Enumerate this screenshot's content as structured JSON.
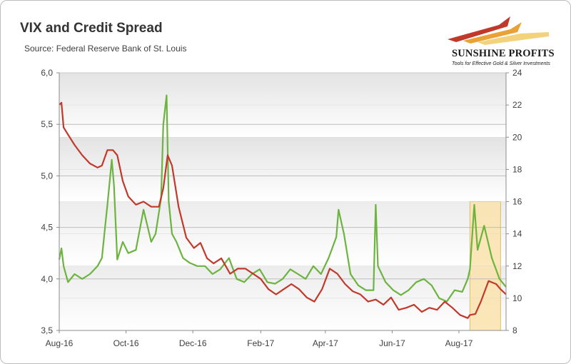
{
  "header": {
    "title": "VIX and Credit Spread",
    "subtitle": "Source: Federal Reserve Bank of St. Louis"
  },
  "logo": {
    "name": "SUNSHINE PROFITS",
    "tagline": "Tools for Effective Gold & Silver Investments"
  },
  "colors": {
    "vix": "#6db33f",
    "spread": "#c0392b",
    "highlight": "#fbe3ad",
    "band_dark": "#e3e3e3",
    "band_light": "#ffffff"
  },
  "chart_data": {
    "type": "line",
    "title": "VIX and Credit Spread",
    "subtitle": "Source: Federal Reserve Bank of St. Louis",
    "x_ticks": [
      "Aug-16",
      "Oct-16",
      "Dec-16",
      "Feb-17",
      "Apr-17",
      "Jun-17",
      "Aug-17"
    ],
    "y_left": {
      "ticks": [
        "3,5",
        "4,0",
        "4,5",
        "5,0",
        "5,5",
        "6,0"
      ],
      "ylim": [
        3.5,
        6.0
      ]
    },
    "y_right": {
      "ticks": [
        "8",
        "10",
        "12",
        "14",
        "16",
        "18",
        "20",
        "22",
        "24"
      ],
      "ylim": [
        8,
        24
      ]
    },
    "grid": true,
    "highlight": {
      "x_start": "2017-08-11",
      "x_end": "2017-09-08"
    },
    "series": [
      {
        "axis": "left",
        "x": [
          "2016-08-01",
          "2016-08-03",
          "2016-08-05",
          "2016-08-09",
          "2016-08-15",
          "2016-08-22",
          "2016-08-29",
          "2016-09-05",
          "2016-09-09",
          "2016-09-14",
          "2016-09-19",
          "2016-09-23",
          "2016-09-28",
          "2016-10-03",
          "2016-10-10",
          "2016-10-17",
          "2016-10-24",
          "2016-10-31",
          "2016-11-04",
          "2016-11-08",
          "2016-11-12",
          "2016-11-18",
          "2016-11-25",
          "2016-12-02",
          "2016-12-08",
          "2016-12-14",
          "2016-12-20",
          "2016-12-27",
          "2017-01-04",
          "2017-01-11",
          "2017-01-18",
          "2017-01-25",
          "2017-02-01",
          "2017-02-08",
          "2017-02-15",
          "2017-02-22",
          "2017-03-01",
          "2017-03-08",
          "2017-03-15",
          "2017-03-22",
          "2017-03-29",
          "2017-04-05",
          "2017-04-12",
          "2017-04-19",
          "2017-04-26",
          "2017-05-03",
          "2017-05-10",
          "2017-05-17",
          "2017-05-24",
          "2017-05-31",
          "2017-06-07",
          "2017-06-14",
          "2017-06-21",
          "2017-06-28",
          "2017-07-05",
          "2017-07-12",
          "2017-07-19",
          "2017-07-26",
          "2017-08-02",
          "2017-08-09",
          "2017-08-11",
          "2017-08-16",
          "2017-08-21",
          "2017-08-28",
          "2017-09-04",
          "2017-09-08",
          "2017-09-13"
        ],
        "values": [
          5.69,
          5.71,
          5.47,
          5.4,
          5.3,
          5.2,
          5.12,
          5.08,
          5.1,
          5.25,
          5.25,
          5.2,
          4.95,
          4.8,
          4.72,
          4.75,
          4.7,
          4.7,
          4.88,
          5.2,
          5.1,
          4.7,
          4.4,
          4.3,
          4.35,
          4.2,
          4.15,
          4.2,
          4.05,
          4.1,
          4.1,
          4.05,
          4.0,
          3.9,
          3.85,
          3.9,
          3.95,
          3.9,
          3.82,
          3.78,
          3.9,
          4.1,
          4.05,
          3.95,
          3.88,
          3.85,
          3.78,
          3.8,
          3.75,
          3.82,
          3.7,
          3.72,
          3.75,
          3.68,
          3.72,
          3.7,
          3.78,
          3.72,
          3.65,
          3.62,
          3.65,
          3.66,
          3.78,
          3.98,
          3.95,
          3.9,
          3.85
        ]
      },
      {
        "axis": "right",
        "x": [
          "2016-08-01",
          "2016-08-03",
          "2016-08-05",
          "2016-08-09",
          "2016-08-15",
          "2016-08-22",
          "2016-08-29",
          "2016-09-05",
          "2016-09-09",
          "2016-09-12",
          "2016-09-14",
          "2016-09-18",
          "2016-09-20",
          "2016-09-23",
          "2016-09-28",
          "2016-10-03",
          "2016-10-10",
          "2016-10-17",
          "2016-10-24",
          "2016-10-28",
          "2016-11-02",
          "2016-11-04",
          "2016-11-07",
          "2016-11-09",
          "2016-11-12",
          "2016-11-16",
          "2016-11-22",
          "2016-11-28",
          "2016-12-05",
          "2016-12-12",
          "2016-12-19",
          "2016-12-26",
          "2017-01-03",
          "2017-01-10",
          "2017-01-17",
          "2017-01-24",
          "2017-01-31",
          "2017-02-07",
          "2017-02-14",
          "2017-02-21",
          "2017-02-28",
          "2017-03-07",
          "2017-03-14",
          "2017-03-21",
          "2017-03-28",
          "2017-04-04",
          "2017-04-11",
          "2017-04-13",
          "2017-04-18",
          "2017-04-24",
          "2017-05-01",
          "2017-05-08",
          "2017-05-15",
          "2017-05-17",
          "2017-05-19",
          "2017-05-26",
          "2017-06-02",
          "2017-06-09",
          "2017-06-16",
          "2017-06-23",
          "2017-06-30",
          "2017-07-07",
          "2017-07-14",
          "2017-07-21",
          "2017-07-28",
          "2017-08-04",
          "2017-08-09",
          "2017-08-11",
          "2017-08-15",
          "2017-08-18",
          "2017-08-24",
          "2017-08-31",
          "2017-09-07",
          "2017-09-13"
        ],
        "values": [
          12.4,
          13.1,
          12.0,
          11.0,
          11.5,
          11.2,
          11.5,
          12.0,
          12.5,
          14.5,
          15.8,
          18.6,
          17.0,
          12.4,
          13.5,
          12.8,
          13.0,
          15.5,
          13.5,
          14.0,
          16.2,
          20.8,
          22.6,
          16.0,
          14.0,
          13.5,
          12.5,
          12.2,
          12.0,
          12.0,
          11.5,
          11.8,
          12.5,
          11.2,
          11.0,
          11.5,
          11.8,
          11.0,
          10.9,
          11.2,
          11.8,
          11.5,
          11.2,
          12.0,
          11.5,
          12.5,
          13.8,
          15.5,
          14.0,
          11.5,
          10.8,
          10.5,
          10.5,
          15.8,
          12.0,
          11.0,
          10.5,
          10.2,
          10.5,
          11.0,
          11.2,
          10.8,
          10.0,
          9.8,
          10.5,
          10.4,
          11.2,
          11.8,
          15.8,
          13.0,
          14.5,
          12.5,
          11.2,
          10.7
        ]
      }
    ]
  }
}
